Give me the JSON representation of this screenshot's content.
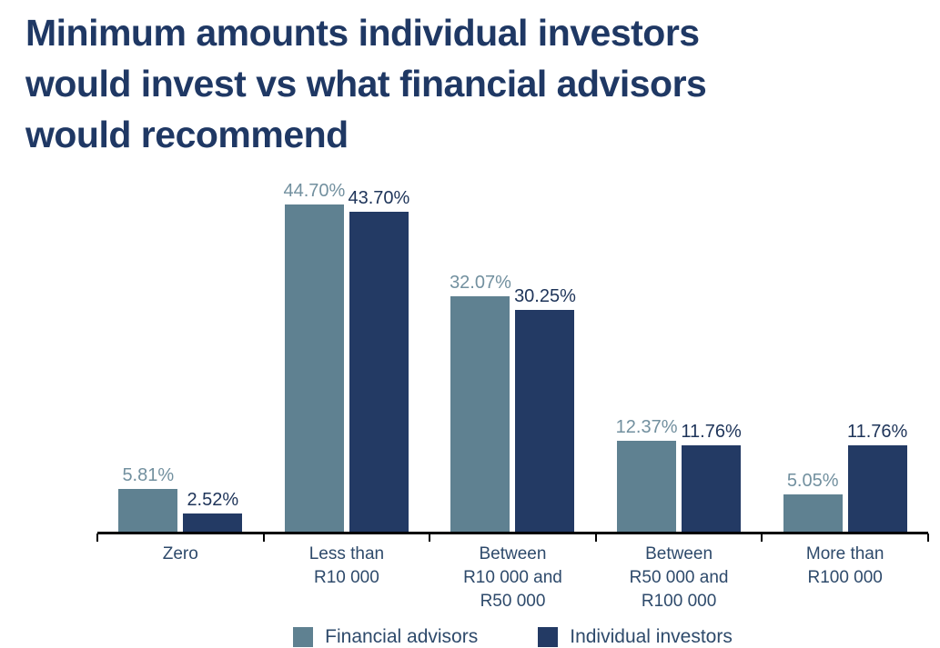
{
  "header": {
    "title_lines": [
      "Minimum amounts individual investors",
      "would invest vs what financial advisors",
      "would recommend"
    ]
  },
  "colors": {
    "title": "#1F3864",
    "axis": "#000000",
    "category_label": "#2E4A6B",
    "legend_label": "#2E4A6B",
    "background": "#FFFFFF"
  },
  "chart_data": {
    "type": "bar",
    "title": "Minimum amounts individual investors would invest vs what financial advisors would recommend",
    "categories": [
      "Zero",
      "Less than\nR10 000",
      "Between\nR10 000 and\nR50 000",
      "Between\nR50 000 and\nR100 000",
      "More than\nR100 000"
    ],
    "series": [
      {
        "name": "Financial advisors",
        "bar_color": "#5F8191",
        "label_color": "#72909F",
        "values": [
          5.81,
          44.7,
          32.07,
          12.37,
          5.05
        ],
        "labels": [
          "5.81%",
          "44.70%",
          "32.07%",
          "12.37%",
          "5.05%"
        ]
      },
      {
        "name": "Individual investors",
        "bar_color": "#233A64",
        "label_color": "#1E3459",
        "values": [
          2.52,
          43.7,
          30.25,
          11.76,
          11.76
        ],
        "labels": [
          "2.52%",
          "43.70%",
          "30.25%",
          "11.76%",
          "11.76%"
        ]
      }
    ],
    "xlabel": "",
    "ylabel": "",
    "ylim": [
      0,
      48
    ],
    "grid": false,
    "y_axis_visible": false,
    "legend_position": "bottom",
    "value_format": "percent_2dp"
  }
}
